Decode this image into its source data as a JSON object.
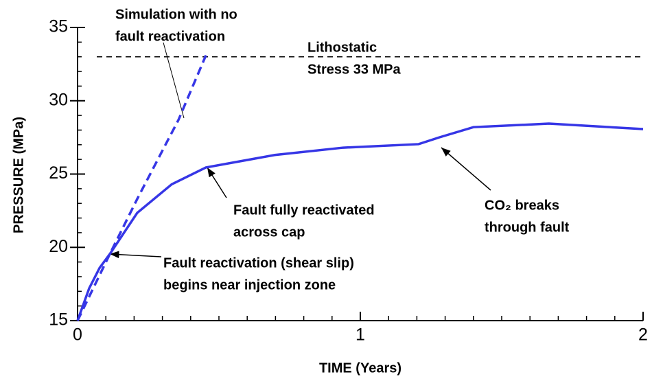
{
  "chart_data": {
    "type": "line",
    "xlabel": "TIME (Years)",
    "ylabel": "PRESSURE (MPa)",
    "xlim": [
      0,
      2
    ],
    "xticks": [
      0,
      1,
      2
    ],
    "xminorticks": [
      0.1,
      0.2,
      0.3,
      0.4,
      0.5,
      0.6,
      0.7,
      0.8,
      0.9,
      1.1,
      1.2,
      1.3,
      1.4,
      1.5,
      1.6,
      1.7,
      1.8,
      1.9
    ],
    "ylim": [
      15,
      35
    ],
    "yticks": [
      15,
      20,
      25,
      30,
      35
    ],
    "yminorticks": [
      16,
      17,
      18,
      19,
      21,
      22,
      23,
      24,
      26,
      27,
      28,
      29,
      31,
      32,
      33,
      34
    ],
    "series": [
      {
        "color": "#3636e6",
        "style": "solid",
        "x": [
          0,
          0.041,
          0.078,
          0.114,
          0.211,
          0.333,
          0.454,
          0.697,
          0.939,
          1.206,
          1.279,
          1.4,
          1.667,
          2
        ],
        "values": [
          15,
          17.2,
          18.6,
          19.54,
          22.35,
          24.3,
          25.45,
          26.3,
          26.8,
          27.04,
          27.5,
          28.2,
          28.44,
          28.07
        ]
      },
      {
        "color": "#3636e6",
        "style": "dashed",
        "x": [
          0,
          0.114,
          0.211,
          0.357,
          0.454
        ],
        "values": [
          15,
          19.54,
          23.3,
          28.7,
          33.1
        ]
      }
    ],
    "reference_line": {
      "value": 33,
      "color": "#000"
    },
    "annotations": [
      {
        "lines": [
          "Simulation with no",
          "fault reactivation"
        ]
      },
      {
        "lines": [
          "Lithostatic",
          "Stress 33 MPa"
        ]
      },
      {
        "lines": [
          "Fault fully reactivated",
          "across cap"
        ]
      },
      {
        "lines": [
          "CO₂ breaks",
          "through fault"
        ]
      },
      {
        "lines": [
          "Fault reactivation (shear slip)",
          "begins near injection zone"
        ]
      }
    ]
  }
}
